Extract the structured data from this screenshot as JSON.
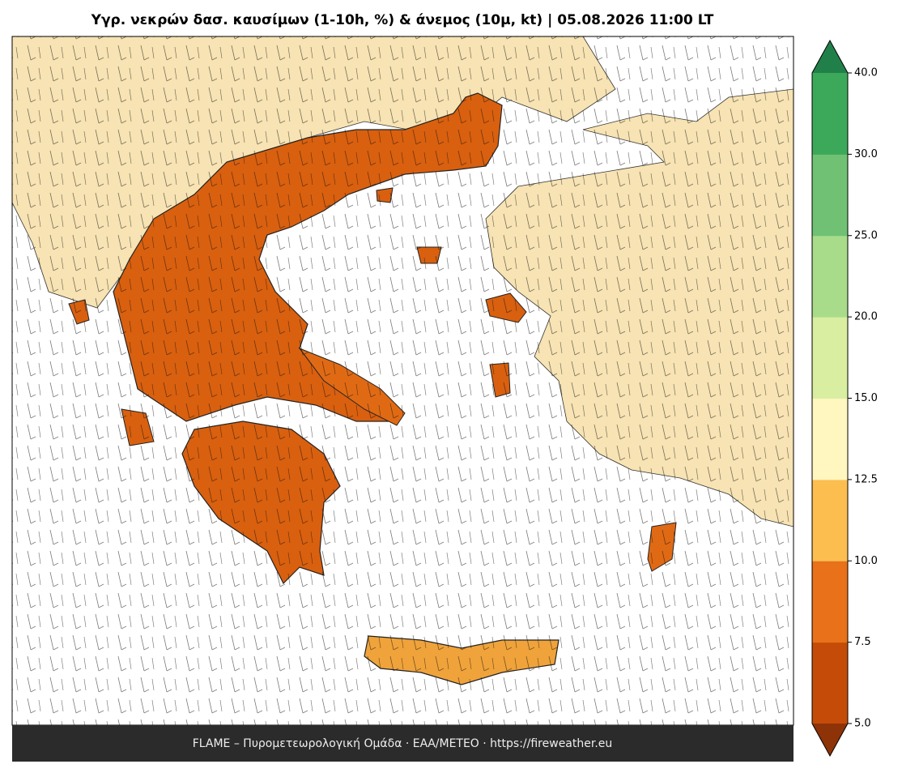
{
  "title": "Υγρ. νεκρών δασ. καυσίμων (1-10h, %) & άνεμος (10μ, kt)  |  05.08.2026 11:00 LT",
  "footer": "FLAME – Πυρομετεωρολογική Ομάδα · ΕΑΑ/METEO · https://fireweather.eu",
  "colorbar": {
    "ticks": [
      {
        "value": 5,
        "label": "5.0"
      },
      7.5,
      {
        "value": 10,
        "label": "10.0"
      },
      12.5,
      {
        "value": 15,
        "label": "15.0"
      },
      {
        "value": 20,
        "label": "20.0"
      },
      {
        "value": 25,
        "label": "25.0"
      },
      {
        "value": 30,
        "label": "30.0"
      },
      {
        "value": 40,
        "label": "40.0"
      }
    ],
    "colors": [
      "#c44c08",
      "#e8711a",
      "#fdbe50",
      "#fff6c0",
      "#d9eea0",
      "#a8dc8b",
      "#70c174",
      "#3ca95a"
    ],
    "extend_min_color": "#8e3208",
    "extend_max_color": "#21804a"
  }
}
